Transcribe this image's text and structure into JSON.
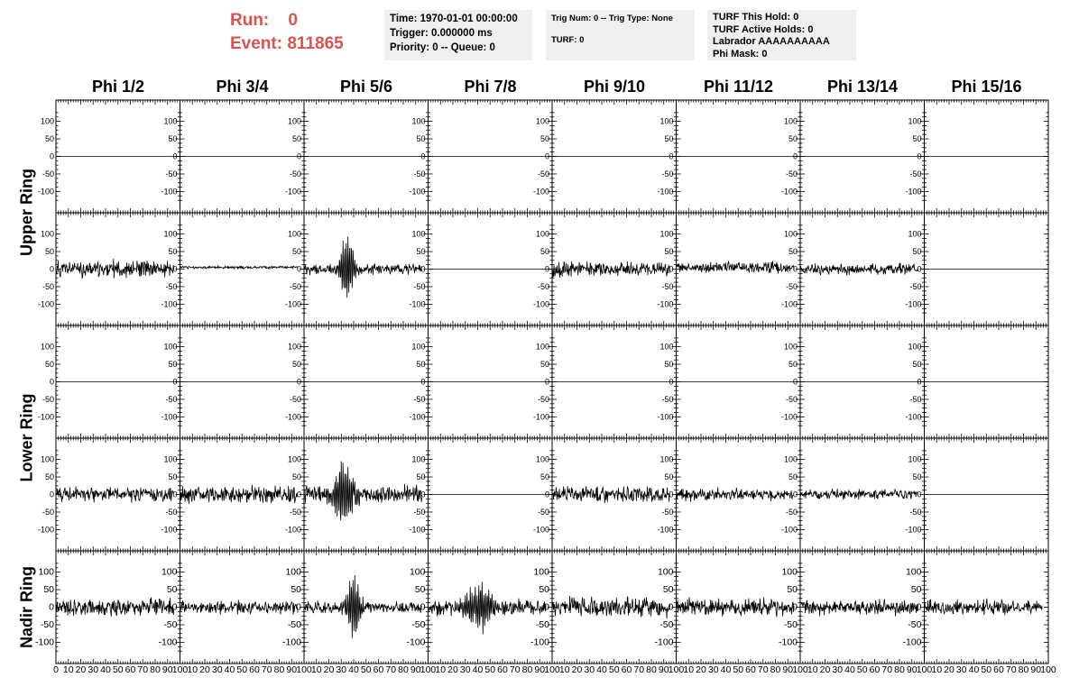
{
  "header": {
    "run_label": "Run:",
    "run_value": "0",
    "event_label": "Event:",
    "event_value": "811865",
    "time": "Time: 1970-01-01 00:00:00",
    "trigger": "Trigger: 0.000000 ms",
    "priority": "Priority: 0 -- Queue: 0",
    "trig_num": "Trig Num: 0 -- Trig Type: None",
    "turf": "TURF: 0",
    "turf_this_hold": "TURF This Hold: 0",
    "turf_active_holds": "TURF Active Holds: 0",
    "labrador": "Labrador AAAAAAAAAA",
    "phi_mask": "Phi Mask: 0"
  },
  "chart_data": {
    "type": "line",
    "columns": [
      "Phi 1/2",
      "Phi 3/4",
      "Phi 5/6",
      "Phi 7/8",
      "Phi 9/10",
      "Phi 11/12",
      "Phi 13/14",
      "Phi 15/16"
    ],
    "ring_labels": [
      {
        "name": "Upper Ring",
        "rows": [
          0,
          1
        ]
      },
      {
        "name": "Lower Ring",
        "rows": [
          2,
          3
        ]
      },
      {
        "name": "Nadir Ring",
        "rows": [
          4
        ]
      }
    ],
    "ylim": [
      -140,
      140
    ],
    "yticks": [
      -100,
      -50,
      0,
      50,
      100
    ],
    "xlim": [
      0,
      100
    ],
    "xticks": [
      0,
      10,
      20,
      30,
      40,
      50,
      60,
      70,
      80,
      90,
      100
    ],
    "xtick_labels_first": [
      "0",
      "10",
      "20",
      "30",
      "40",
      "50",
      "60",
      "70",
      "80",
      "90",
      "100"
    ],
    "xtick_labels_other": [
      "10",
      "20",
      "30",
      "40",
      "50",
      "60",
      "70",
      "80",
      "90",
      "100"
    ],
    "signal_xrange": [
      0,
      95
    ],
    "panels": [
      [
        {
          "type": "flat",
          "level": 0
        },
        {
          "type": "flat",
          "level": 0
        },
        {
          "type": "flat",
          "level": 0
        },
        {
          "type": "flat",
          "level": 0
        },
        {
          "type": "flat",
          "level": 0
        },
        {
          "type": "flat",
          "level": 0
        },
        {
          "type": "flat",
          "level": 0
        },
        {
          "type": "flat",
          "level": 0
        }
      ],
      [
        {
          "type": "noise",
          "amplitude": 25,
          "offset": 0,
          "seed": 11
        },
        {
          "type": "noise",
          "amplitude": 4,
          "offset": 5,
          "seed": 12
        },
        {
          "type": "pulse",
          "amplitude": 15,
          "offset": 0,
          "seed": 13,
          "pulse_center": 35,
          "pulse_peak": 100,
          "pulse_width": 6
        },
        {
          "type": "flat",
          "level": 0
        },
        {
          "type": "noise",
          "amplitude": 22,
          "offset": 0,
          "seed": 15
        },
        {
          "type": "noise",
          "amplitude": 16,
          "offset": 5,
          "seed": 16
        },
        {
          "type": "noise",
          "amplitude": 16,
          "offset": 0,
          "seed": 17
        },
        {
          "type": "flat",
          "level": 0
        }
      ],
      [
        {
          "type": "flat",
          "level": 0
        },
        {
          "type": "flat",
          "level": 0
        },
        {
          "type": "flat",
          "level": 0
        },
        {
          "type": "flat",
          "level": 0
        },
        {
          "type": "flat",
          "level": 0
        },
        {
          "type": "flat",
          "level": 0
        },
        {
          "type": "flat",
          "level": 0
        },
        {
          "type": "flat",
          "level": 0
        }
      ],
      [
        {
          "type": "noise",
          "amplitude": 22,
          "offset": 0,
          "seed": 21
        },
        {
          "type": "noise",
          "amplitude": 25,
          "offset": 0,
          "seed": 22
        },
        {
          "type": "pulse",
          "amplitude": 28,
          "offset": 0,
          "seed": 23,
          "pulse_center": 32,
          "pulse_peak": 100,
          "pulse_width": 9
        },
        {
          "type": "flat",
          "level": 0
        },
        {
          "type": "noise",
          "amplitude": 22,
          "offset": 0,
          "seed": 25
        },
        {
          "type": "noise",
          "amplitude": 18,
          "offset": 0,
          "seed": 26
        },
        {
          "type": "noise",
          "amplitude": 14,
          "offset": 0,
          "seed": 27
        },
        {
          "type": "flat",
          "level": 0
        }
      ],
      [
        {
          "type": "noise",
          "amplitude": 25,
          "offset": 0,
          "seed": 31
        },
        {
          "type": "noise",
          "amplitude": 18,
          "offset": 0,
          "seed": 32
        },
        {
          "type": "pulse",
          "amplitude": 18,
          "offset": 0,
          "seed": 33,
          "pulse_center": 40,
          "pulse_peak": 95,
          "pulse_width": 6
        },
        {
          "type": "pulse",
          "amplitude": 22,
          "offset": 0,
          "seed": 34,
          "pulse_center": 42,
          "pulse_peak": 70,
          "pulse_width": 14
        },
        {
          "type": "noise",
          "amplitude": 30,
          "offset": 0,
          "seed": 35
        },
        {
          "type": "noise",
          "amplitude": 25,
          "offset": 0,
          "seed": 36
        },
        {
          "type": "noise",
          "amplitude": 22,
          "offset": 0,
          "seed": 37
        },
        {
          "type": "noise",
          "amplitude": 22,
          "offset": 0,
          "seed": 38
        }
      ]
    ]
  }
}
